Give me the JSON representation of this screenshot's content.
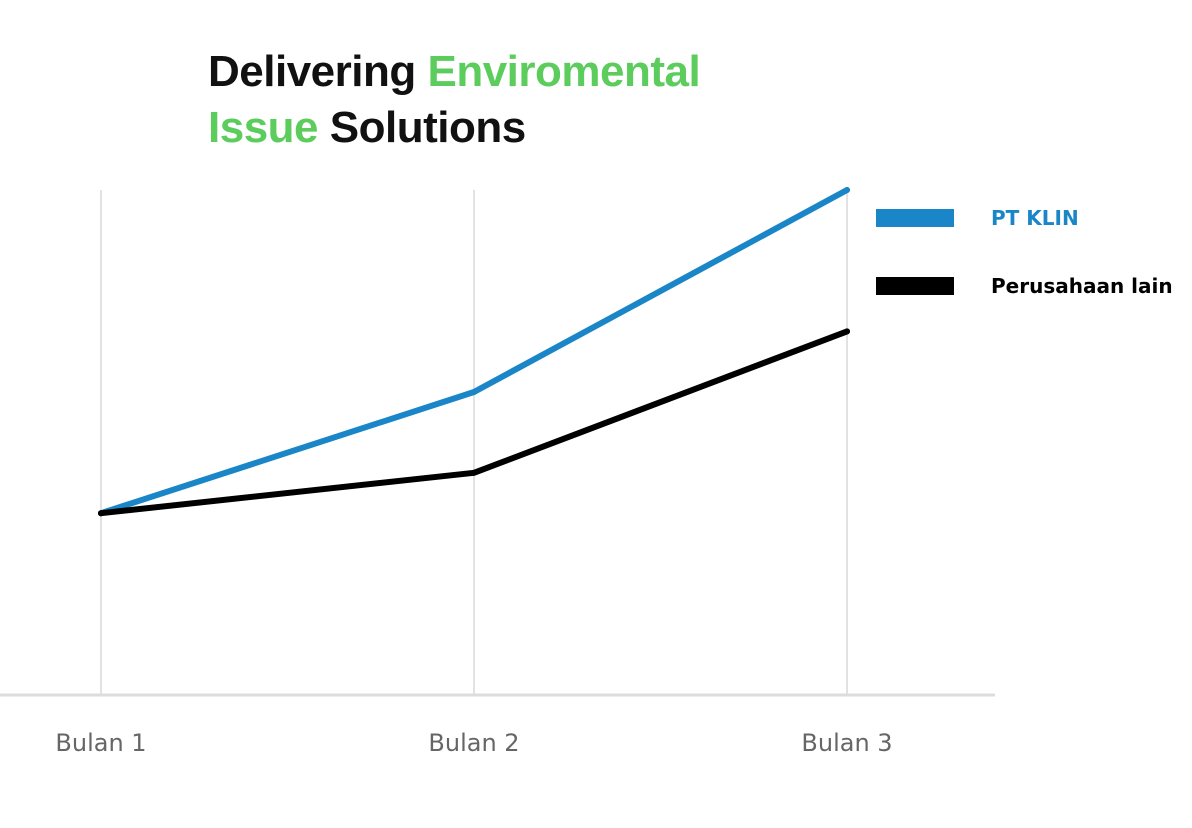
{
  "title": {
    "part1": "Delivering",
    "part2": "Enviromental",
    "part3": "Issue",
    "part4": "Solutions"
  },
  "chart_data": {
    "type": "line",
    "categories": [
      "Bulan 1",
      "Bulan 2",
      "Bulan 3"
    ],
    "series": [
      {
        "name": "PT KLIN",
        "color": "#1a86c8",
        "values": [
          1,
          2.5,
          5
        ]
      },
      {
        "name": "Perusahaan lain",
        "color": "#000000",
        "values": [
          1,
          1.5,
          3.25
        ]
      }
    ],
    "ylim": [
      -1.25,
      5
    ],
    "grid": "vertical",
    "legend_position": "right",
    "xlabel": "",
    "ylabel": ""
  }
}
